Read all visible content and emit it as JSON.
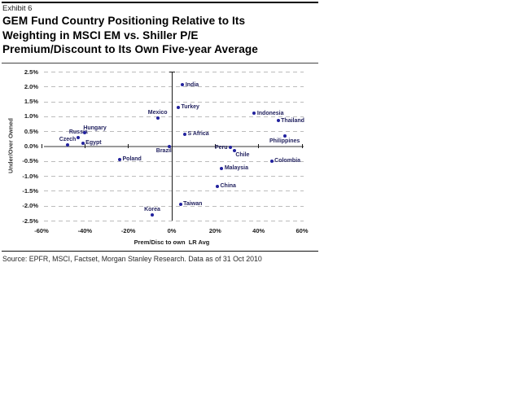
{
  "header": {
    "exhibit_label": "Exhibit 6",
    "title_lines": [
      "GEM Fund Country Positioning Relative to Its",
      "Weighting in MSCI EM vs. Shiller P/E",
      "Premium/Discount to Its Own Five-year Average"
    ]
  },
  "footer": {
    "source": "Source: EPFR, MSCI, Factset, Morgan Stanley Research. Data as of 31 Oct 2010"
  },
  "colors": {
    "point": "#22229e",
    "point_label": "#232360",
    "gridline": "#bcbcbc",
    "zero_line": "#9a9a9a",
    "axis": "#1a1a1a"
  },
  "chart_data": {
    "type": "scatter",
    "title": "GEM Fund Country Positioning Relative to Its Weighting in MSCI EM vs. Shiller P/E Premium/Discount to Its Own Five-year Average",
    "xlabel": "Prem/Disc to own  LR Avg",
    "ylabel": "Under/Over Owned",
    "xlim": [
      -60,
      60
    ],
    "ylim": [
      -2.5,
      2.5
    ],
    "x_ticks": [
      "-60%",
      "-40%",
      "-20%",
      "0%",
      "20%",
      "40%",
      "60%"
    ],
    "y_ticks": [
      "2.5%",
      "2.0%",
      "1.5%",
      "1.0%",
      "0.5%",
      "0.0%",
      "-0.5%",
      "-1.0%",
      "-1.5%",
      "-2.0%",
      "-2.5%"
    ],
    "grid": "dashed-horizontal",
    "legend": "none",
    "points": [
      {
        "label": "Czech",
        "x": -48,
        "y": 0.05,
        "label_pos": "above"
      },
      {
        "label": "Russia",
        "x": -43,
        "y": 0.3,
        "label_pos": "above"
      },
      {
        "label": "Hungary",
        "x": -40,
        "y": 0.45,
        "label_pos": "above-right"
      },
      {
        "label": "Egypt",
        "x": -41,
        "y": 0.1,
        "label_pos": "right"
      },
      {
        "label": "Poland",
        "x": -24,
        "y": -0.45,
        "label_pos": "right"
      },
      {
        "label": "Mexico",
        "x": -6.5,
        "y": 0.95,
        "label_pos": "above"
      },
      {
        "label": "Brazil",
        "x": -1,
        "y": 0.0,
        "label_pos": "below-left"
      },
      {
        "label": "India",
        "x": 5,
        "y": 2.05,
        "label_pos": "right"
      },
      {
        "label": "Turkey",
        "x": 3,
        "y": 1.3,
        "label_pos": "right"
      },
      {
        "label": "S Africa",
        "x": 6,
        "y": 0.4,
        "label_pos": "right"
      },
      {
        "label": "Korea",
        "x": -9,
        "y": -2.3,
        "label_pos": "above"
      },
      {
        "label": "Taiwan",
        "x": 4,
        "y": -1.95,
        "label_pos": "right"
      },
      {
        "label": "China",
        "x": 21,
        "y": -1.35,
        "label_pos": "right"
      },
      {
        "label": "Malaysia",
        "x": 23,
        "y": -0.75,
        "label_pos": "right"
      },
      {
        "label": "Peru",
        "x": 27,
        "y": -0.05,
        "label_pos": "left"
      },
      {
        "label": "Chile",
        "x": 29,
        "y": -0.15,
        "label_pos": "below-right"
      },
      {
        "label": "Indonesia",
        "x": 38,
        "y": 1.1,
        "label_pos": "right"
      },
      {
        "label": "Colombia",
        "x": 46,
        "y": -0.5,
        "label_pos": "right"
      },
      {
        "label": "Thailand",
        "x": 49,
        "y": 0.85,
        "label_pos": "right"
      },
      {
        "label": "Philippines",
        "x": 52,
        "y": 0.35,
        "label_pos": "below"
      }
    ]
  }
}
